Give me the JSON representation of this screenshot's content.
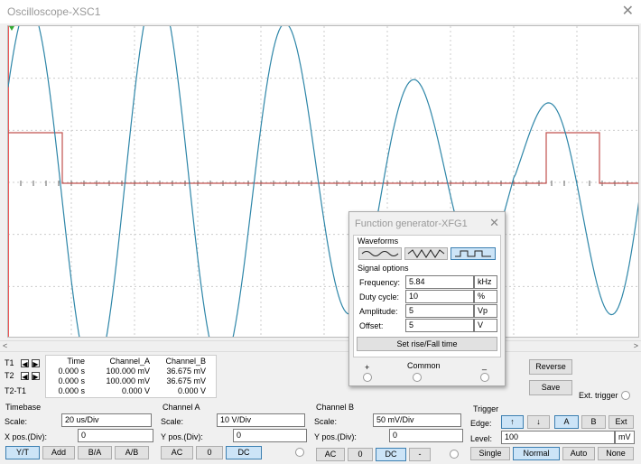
{
  "window": {
    "title": "Oscilloscope-XSC1"
  },
  "readout": {
    "headers": [
      "Time",
      "Channel_A",
      "Channel_B"
    ],
    "rows": [
      {
        "label": "T1",
        "time": "0.000 s",
        "a": "100.000 mV",
        "b": "36.675 mV"
      },
      {
        "label": "T2",
        "time": "0.000 s",
        "a": "100.000 mV",
        "b": "36.675 mV"
      },
      {
        "label": "T2-T1",
        "time": "0.000 s",
        "a": "0.000 V",
        "b": "0.000 V"
      }
    ]
  },
  "buttons": {
    "reverse": "Reverse",
    "save": "Save",
    "ext_trigger": "Ext. trigger"
  },
  "timebase": {
    "title": "Timebase",
    "scale_label": "Scale:",
    "scale": "20 us/Div",
    "pos_label": "X pos.(Div):",
    "pos": "0",
    "modes": [
      "Y/T",
      "Add",
      "B/A",
      "A/B"
    ]
  },
  "channel_a": {
    "title": "Channel A",
    "scale_label": "Scale:",
    "scale": "10  V/Div",
    "pos_label": "Y pos.(Div):",
    "pos": "0",
    "coupling": [
      "AC",
      "0",
      "DC"
    ]
  },
  "channel_b": {
    "title": "Channel B",
    "scale_label": "Scale:",
    "scale": "50 mV/Div",
    "pos_label": "Y pos.(Div):",
    "pos": "0",
    "coupling": [
      "AC",
      "0",
      "DC",
      "-"
    ]
  },
  "trigger": {
    "title": "Trigger",
    "edge_label": "Edge:",
    "source": [
      "A",
      "B",
      "Ext"
    ],
    "level_label": "Level:",
    "level": "100",
    "level_unit": "mV",
    "modes": [
      "Single",
      "Normal",
      "Auto",
      "None"
    ]
  },
  "function_generator": {
    "title": "Function generator-XFG1",
    "waveforms_label": "Waveforms",
    "signal_options_label": "Signal options",
    "params": [
      {
        "label": "Frequency:",
        "value": "5.84",
        "unit": "kHz"
      },
      {
        "label": "Duty cycle:",
        "value": "10",
        "unit": "%"
      },
      {
        "label": "Amplitude:",
        "value": "5",
        "unit": "Vp"
      },
      {
        "label": "Offset:",
        "value": "5",
        "unit": "V"
      }
    ],
    "rise_fall_button": "Set rise/Fall time",
    "terminals": [
      "+",
      "Common",
      "_"
    ]
  },
  "colors": {
    "channel_a": "#c0504d",
    "channel_b": "#2e86a8",
    "selected": "#cce4f7"
  }
}
